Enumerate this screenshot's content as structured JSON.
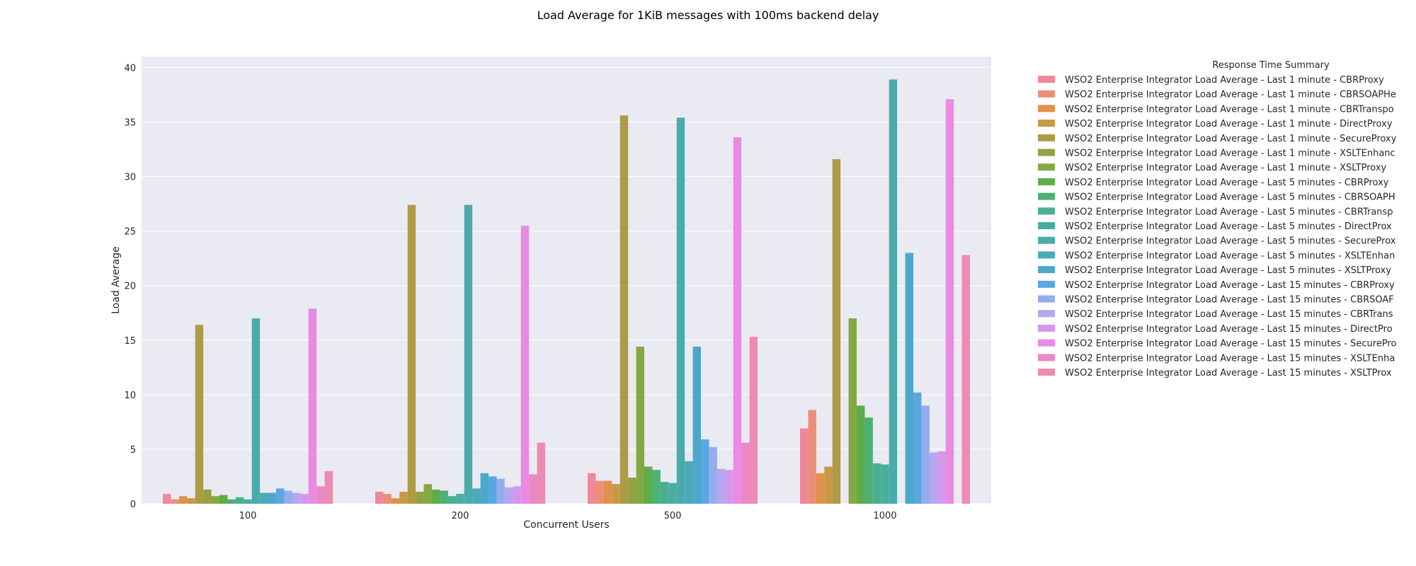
{
  "chart_data": {
    "type": "bar",
    "title": "Load Average for 1KiB messages with 100ms backend delay",
    "xlabel": "Concurrent Users",
    "ylabel": "Load Average",
    "ylim": [
      0,
      41
    ],
    "yticks": [
      0,
      5,
      10,
      15,
      20,
      25,
      30,
      35,
      40
    ],
    "grid": true,
    "legend_placement": "right",
    "legend_title": "Response Time Summary",
    "categories": [
      "100",
      "200",
      "500",
      "1000"
    ],
    "series": [
      {
        "name": "WSO2 Enterprise Integrator Load Average - Last 1 minute - CBRProxy",
        "color": "#f0879a",
        "values": [
          0.9,
          1.1,
          2.8,
          6.9
        ]
      },
      {
        "name": "WSO2 Enterprise Integrator Load Average - Last 1 minute - CBRSOAPHe",
        "color": "#ec8f79",
        "values": [
          0.4,
          0.9,
          2.1,
          8.6
        ]
      },
      {
        "name": "WSO2 Enterprise Integrator Load Average - Last 1 minute - CBRTranspo",
        "color": "#e0914a",
        "values": [
          0.7,
          0.5,
          2.1,
          2.8
        ]
      },
      {
        "name": "WSO2 Enterprise Integrator Load Average - Last 1 minute - DirectProxy",
        "color": "#c99845",
        "values": [
          0.5,
          1.1,
          1.8,
          3.4
        ]
      },
      {
        "name": "WSO2 Enterprise Integrator Load Average - Last 1 minute - SecureProxy",
        "color": "#ad9b45",
        "values": [
          16.4,
          27.4,
          35.6,
          31.6
        ]
      },
      {
        "name": "WSO2 Enterprise Integrator Load Average - Last 1 minute - XSLTEnhanc",
        "color": "#95a144",
        "values": [
          1.3,
          1.1,
          2.4,
          0.0
        ]
      },
      {
        "name": "WSO2 Enterprise Integrator Load Average - Last 1 minute - XSLTProxy",
        "color": "#83a945",
        "values": [
          0.7,
          1.8,
          14.4,
          17.0
        ]
      },
      {
        "name": "WSO2 Enterprise Integrator Load Average - Last 5 minutes - CBRProxy",
        "color": "#5fad48",
        "values": [
          0.8,
          1.3,
          3.4,
          9.0
        ]
      },
      {
        "name": "WSO2 Enterprise Integrator Load Average - Last 5 minutes - CBRSOAPH",
        "color": "#4bb174",
        "values": [
          0.4,
          1.2,
          3.1,
          7.9
        ]
      },
      {
        "name": "WSO2 Enterprise Integrator Load Average - Last 5 minutes - CBRTransp",
        "color": "#4aaf91",
        "values": [
          0.6,
          0.7,
          2.0,
          3.7
        ]
      },
      {
        "name": "WSO2 Enterprise Integrator Load Average - Last 5 minutes - DirectProx",
        "color": "#49ad9f",
        "values": [
          0.4,
          0.9,
          1.9,
          3.6
        ]
      },
      {
        "name": "WSO2 Enterprise Integrator Load Average - Last 5 minutes - SecureProx",
        "color": "#4aabab",
        "values": [
          17.0,
          27.4,
          35.4,
          38.9
        ]
      },
      {
        "name": "WSO2 Enterprise Integrator Load Average - Last 5 minutes - XSLTEnhan",
        "color": "#4ba9b8",
        "values": [
          1.0,
          1.4,
          3.9,
          0.0
        ]
      },
      {
        "name": "WSO2 Enterprise Integrator Load Average - Last 5 minutes - XSLTProxy",
        "color": "#4ca8cb",
        "values": [
          1.0,
          2.8,
          14.4,
          23.0
        ]
      },
      {
        "name": "WSO2 Enterprise Integrator Load Average - Last 15 minutes - CBRProxy",
        "color": "#5aa7e3",
        "values": [
          1.4,
          2.5,
          5.9,
          10.2
        ]
      },
      {
        "name": "WSO2 Enterprise Integrator Load Average - Last 15 minutes - CBRSOAF",
        "color": "#95acee",
        "values": [
          1.2,
          2.3,
          5.2,
          9.0
        ]
      },
      {
        "name": "WSO2 Enterprise Integrator Load Average - Last 15 minutes - CBRTrans",
        "color": "#b7a6ef",
        "values": [
          1.0,
          1.5,
          3.2,
          4.7
        ]
      },
      {
        "name": "WSO2 Enterprise Integrator Load Average - Last 15 minutes - DirectPro",
        "color": "#d397ec",
        "values": [
          0.9,
          1.6,
          3.1,
          4.8
        ]
      },
      {
        "name": "WSO2 Enterprise Integrator Load Average - Last 15 minutes - SecurePro",
        "color": "#e98be3",
        "values": [
          17.9,
          25.5,
          33.6,
          37.1
        ]
      },
      {
        "name": "WSO2 Enterprise Integrator Load Average - Last 15 minutes - XSLTEnha",
        "color": "#ec88c7",
        "values": [
          1.6,
          2.7,
          5.6,
          0.0
        ]
      },
      {
        "name": "WSO2 Enterprise Integrator Load Average - Last 15 minutes - XSLTProx",
        "color": "#ee8bb2",
        "values": [
          3.0,
          5.6,
          15.3,
          22.8
        ]
      }
    ]
  }
}
